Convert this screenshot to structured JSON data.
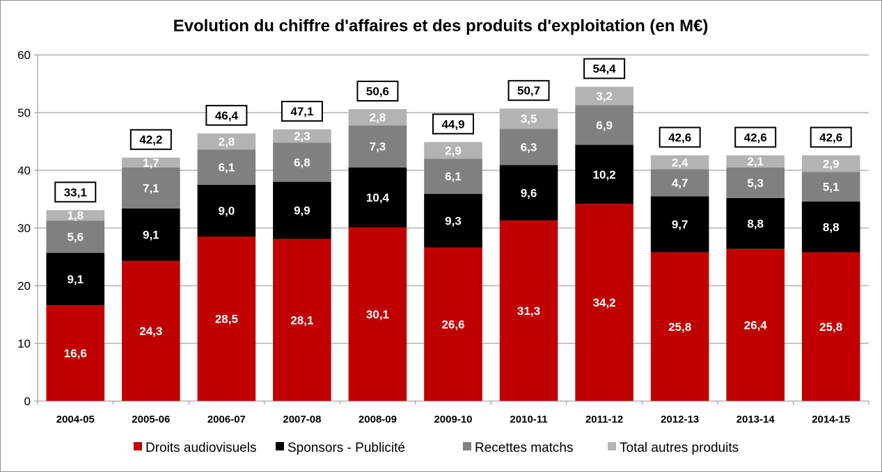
{
  "chart_data": {
    "type": "bar",
    "stacked": true,
    "title": "Evolution du chiffre d'affaires et des produits d'exploitation (en M€)",
    "xlabel": "",
    "ylabel": "",
    "ylim": [
      0,
      60
    ],
    "yticks": [
      0,
      10,
      20,
      30,
      40,
      50,
      60
    ],
    "grid": true,
    "legend_position": "bottom",
    "categories": [
      "2004-05",
      "2005-06",
      "2006-07",
      "2007-08",
      "2008-09",
      "2009-10",
      "2010-11",
      "2011-12",
      "2012-13",
      "2013-14",
      "2014-15"
    ],
    "series": [
      {
        "name": "Droits audiovisuels",
        "color": "#c00000",
        "label_color": "#ffffff",
        "values": [
          16.6,
          24.3,
          28.5,
          28.1,
          30.1,
          26.6,
          31.3,
          34.2,
          25.8,
          26.4,
          25.8
        ],
        "labels": [
          "16,6",
          "24,3",
          "28,5",
          "28,1",
          "30,1",
          "26,6",
          "31,3",
          "34,2",
          "25,8",
          "26,4",
          "25,8"
        ]
      },
      {
        "name": "Sponsors - Publicité",
        "color": "#000000",
        "label_color": "#ffffff",
        "values": [
          9.1,
          9.1,
          9.0,
          9.9,
          10.4,
          9.3,
          9.6,
          10.2,
          9.7,
          8.8,
          8.8
        ],
        "labels": [
          "9,1",
          "9,1",
          "9,0",
          "9,9",
          "10,4",
          "9,3",
          "9,6",
          "10,2",
          "9,7",
          "8,8",
          "8,8"
        ]
      },
      {
        "name": "Recettes matchs",
        "color": "#808080",
        "label_color": "#ffffff",
        "values": [
          5.6,
          7.1,
          6.1,
          6.8,
          7.3,
          6.1,
          6.3,
          6.9,
          4.7,
          5.3,
          5.1
        ],
        "labels": [
          "5,6",
          "7,1",
          "6,1",
          "6,8",
          "7,3",
          "6,1",
          "6,3",
          "6,9",
          "4,7",
          "5,3",
          "5,1"
        ]
      },
      {
        "name": "Total autres produits",
        "color": "#b3b3b3",
        "label_color": "#ffffff",
        "values": [
          1.8,
          1.7,
          2.8,
          2.3,
          2.8,
          2.9,
          3.5,
          3.2,
          2.4,
          2.1,
          2.9
        ],
        "labels": [
          "1,8",
          "1,7",
          "2,8",
          "2,3",
          "2,8",
          "2,9",
          "3,5",
          "3,2",
          "2,4",
          "2,1",
          "2,9"
        ]
      }
    ],
    "totals": [
      33.1,
      42.2,
      46.4,
      47.1,
      50.6,
      44.9,
      50.7,
      54.4,
      42.6,
      42.6,
      42.6
    ],
    "total_labels": [
      "33,1",
      "42,2",
      "46,4",
      "47,1",
      "50,6",
      "44,9",
      "50,7",
      "54,4",
      "42,6",
      "42,6",
      "42,6"
    ],
    "gridline_color": "#8c8c8c"
  }
}
